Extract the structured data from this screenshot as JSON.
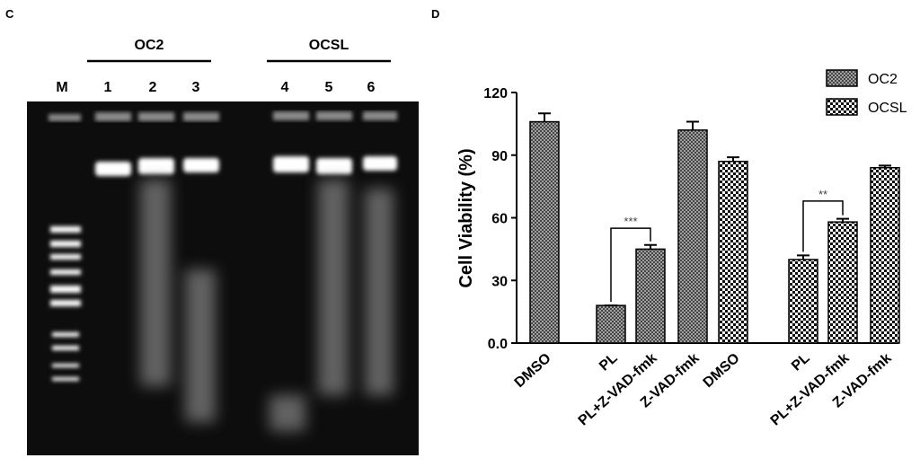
{
  "panel_c": {
    "label": "C",
    "groups": [
      "OC2",
      "OCSL"
    ],
    "lanes": [
      "M",
      "1",
      "2",
      "3",
      "4",
      "5",
      "6"
    ]
  },
  "chart_data": {
    "type": "bar",
    "label": "D",
    "ylabel": "Cell Viability (%)",
    "categories": [
      "DMSO",
      "PL",
      "PL+Z-VAD-fmk",
      "Z-VAD-fmk"
    ],
    "series": [
      {
        "name": "OC2",
        "color": "#888888",
        "values": [
          106,
          18,
          45,
          102
        ],
        "errors": [
          4,
          0,
          2,
          4
        ]
      },
      {
        "name": "OCSL",
        "color": "#222222",
        "values": [
          87,
          40,
          58,
          84
        ],
        "errors": [
          2,
          2,
          1.5,
          1
        ]
      }
    ],
    "ylim": [
      0,
      120
    ],
    "yticks": [
      {
        "value": 0,
        "label": "0.0"
      },
      30,
      60,
      90,
      120
    ],
    "annotations": [
      "***",
      "**"
    ],
    "legend": "upper right"
  }
}
